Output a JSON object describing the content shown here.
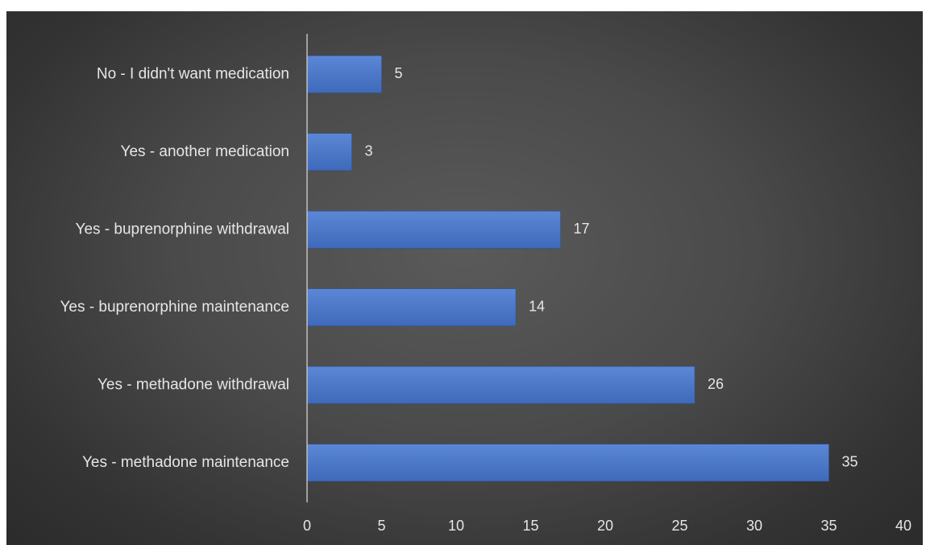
{
  "chart_data": {
    "type": "bar",
    "orientation": "horizontal",
    "categories": [
      "No - I didn't want medication",
      "Yes - another medication",
      "Yes - buprenorphine withdrawal",
      "Yes - buprenorphine maintenance",
      "Yes - methadone withdrawal",
      "Yes - methadone maintenance"
    ],
    "values": [
      5,
      3,
      17,
      14,
      26,
      35
    ],
    "xlim": [
      0,
      40
    ],
    "xticks": [
      0,
      5,
      10,
      15,
      20,
      25,
      30,
      35,
      40
    ],
    "data_labels": true,
    "grid": false,
    "legend": "none",
    "colors": {
      "bar": "#4472c4",
      "bar_top": "#5b87d6",
      "background": "#3f3f3f",
      "text": "#e6e6e6",
      "axis": "#bfbfbf"
    }
  }
}
